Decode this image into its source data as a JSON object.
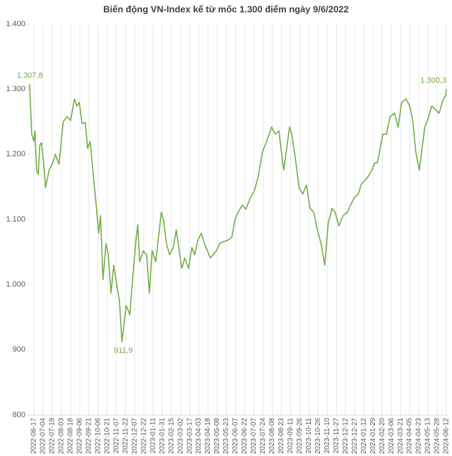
{
  "chart_data": {
    "type": "line",
    "title": "Biến động VN-Index kể từ mốc 1.300 điểm ngày 9/6/2022",
    "x": [
      "2022-06-09",
      "2022-06-13",
      "2022-06-17",
      "2022-06-19",
      "2022-06-22",
      "2022-06-25",
      "2022-06-28",
      "2022-07-01",
      "2022-07-06",
      "2022-07-08",
      "2022-07-14",
      "2022-07-20",
      "2022-07-24",
      "2022-07-30",
      "2022-08-06",
      "2022-08-12",
      "2022-08-18",
      "2022-08-26",
      "2022-08-31",
      "2022-09-05",
      "2022-09-10",
      "2022-09-15",
      "2022-09-19",
      "2022-09-23",
      "2022-09-28",
      "2022-10-03",
      "2022-10-07",
      "2022-10-10",
      "2022-10-14",
      "2022-10-19",
      "2022-10-23",
      "2022-10-28",
      "2022-11-02",
      "2022-11-08",
      "2022-11-12",
      "2022-11-16",
      "2022-11-23",
      "2022-11-29",
      "2022-12-04",
      "2022-12-09",
      "2022-12-12",
      "2022-12-15",
      "2022-12-21",
      "2022-12-28",
      "2023-01-03",
      "2023-01-09",
      "2023-01-17",
      "2023-01-24",
      "2023-01-29",
      "2023-02-02",
      "2023-02-07",
      "2023-02-12",
      "2023-02-18",
      "2023-02-23",
      "2023-02-28",
      "2023-03-04",
      "2023-03-09",
      "2023-03-15",
      "2023-03-21",
      "2023-03-26",
      "2023-04-01",
      "2023-04-07",
      "2023-04-12",
      "2023-04-17",
      "2023-04-23",
      "2023-04-29",
      "2023-05-06",
      "2023-05-12",
      "2023-05-18",
      "2023-05-25",
      "2023-06-01",
      "2023-06-06",
      "2023-06-11",
      "2023-06-18",
      "2023-06-24",
      "2023-07-01",
      "2023-07-08",
      "2023-07-15",
      "2023-07-23",
      "2023-07-30",
      "2023-08-07",
      "2023-08-13",
      "2023-08-19",
      "2023-08-23",
      "2023-08-28",
      "2023-09-03",
      "2023-09-09",
      "2023-09-13",
      "2023-09-19",
      "2023-09-25",
      "2023-10-01",
      "2023-10-07",
      "2023-10-13",
      "2023-10-19",
      "2023-10-25",
      "2023-10-31",
      "2023-11-06",
      "2023-11-12",
      "2023-11-19",
      "2023-11-25",
      "2023-12-01",
      "2023-12-08",
      "2023-12-15",
      "2023-12-20",
      "2023-12-26",
      "2024-01-02",
      "2024-01-08",
      "2024-01-14",
      "2024-01-20",
      "2024-01-27",
      "2024-02-02",
      "2024-02-08",
      "2024-02-14",
      "2024-02-21",
      "2024-02-27",
      "2024-03-04",
      "2024-03-11",
      "2024-03-17",
      "2024-03-23",
      "2024-03-30",
      "2024-04-05",
      "2024-04-11",
      "2024-04-17",
      "2024-04-24",
      "2024-04-30",
      "2024-05-06",
      "2024-05-12",
      "2024-05-19",
      "2024-05-25",
      "2024-05-31",
      "2024-06-07",
      "2024-06-11",
      "2024-06-12"
    ],
    "series": [
      {
        "name": "VN-Index",
        "color": "#70ad47",
        "values": [
          1307.8,
          1231,
          1220,
          1236,
          1176,
          1169,
          1214,
          1218,
          1176,
          1149,
          1176,
          1187,
          1200,
          1185,
          1250,
          1258,
          1252,
          1285,
          1274,
          1280,
          1247,
          1249,
          1209,
          1220,
          1171,
          1122,
          1079,
          1106,
          1008,
          1063,
          1046,
          987,
          1030,
          997,
          976,
          911.9,
          968,
          954,
          1014,
          1068,
          1092,
          1035,
          1052,
          1046,
          987,
          1052,
          1035,
          1079,
          1111,
          1100,
          1063,
          1046,
          1057,
          1084,
          1052,
          1025,
          1041,
          1025,
          1057,
          1046,
          1068,
          1079,
          1063,
          1052,
          1041,
          1046,
          1052,
          1063,
          1066,
          1068,
          1073,
          1100,
          1111,
          1122,
          1116,
          1133,
          1144,
          1166,
          1204,
          1220,
          1242,
          1231,
          1236,
          1204,
          1176,
          1209,
          1242,
          1231,
          1193,
          1149,
          1139,
          1153,
          1117,
          1111,
          1084,
          1063,
          1030,
          1095,
          1117,
          1111,
          1090,
          1106,
          1111,
          1122,
          1133,
          1139,
          1155,
          1160,
          1166,
          1176,
          1187,
          1187,
          1204,
          1231,
          1231,
          1258,
          1263,
          1242,
          1280,
          1285,
          1274,
          1252,
          1204,
          1176,
          1209,
          1242,
          1252,
          1274,
          1269,
          1263,
          1285,
          1290,
          1300.3
        ],
        "value_labels": [
          "1.307,8",
          null,
          null,
          null,
          null,
          null,
          null,
          null,
          null,
          null,
          null,
          null,
          null,
          null,
          null,
          null,
          null,
          null,
          null,
          null,
          null,
          null,
          null,
          null,
          null,
          null,
          null,
          null,
          null,
          null,
          null,
          null,
          null,
          null,
          null,
          "911,9",
          null,
          null,
          null,
          null,
          null,
          null,
          null,
          null,
          null,
          null,
          null,
          null,
          null,
          null,
          null,
          null,
          null,
          null,
          null,
          null,
          null,
          null,
          null,
          null,
          null,
          null,
          null,
          null,
          null,
          null,
          null,
          null,
          null,
          null,
          null,
          null,
          null,
          null,
          null,
          null,
          null,
          null,
          null,
          null,
          null,
          null,
          null,
          null,
          null,
          null,
          null,
          null,
          null,
          null,
          null,
          null,
          null,
          null,
          null,
          null,
          null,
          null,
          null,
          null,
          null,
          null,
          null,
          null,
          null,
          null,
          null,
          null,
          null,
          null,
          null,
          null,
          null,
          null,
          null,
          null,
          null,
          null,
          null,
          null,
          null,
          null,
          null,
          null,
          null,
          null,
          null,
          null,
          null,
          null,
          null,
          null,
          "1.300,3"
        ]
      }
    ],
    "ylim": [
      800,
      1400
    ],
    "yticks": [
      800,
      900,
      {
        "value": 1000,
        "label": "1.000"
      },
      {
        "value": 1100,
        "label": "1.100"
      },
      {
        "value": 1200,
        "label": "1.200"
      },
      {
        "value": 1300,
        "label": "1.300"
      },
      {
        "value": 1400,
        "label": "1.400"
      }
    ],
    "xticks": [
      "2022-06-17",
      "2022-07-04",
      "2022-07-19",
      "2022-08-03",
      "2022-08-18",
      "2022-09-06",
      "2022-09-21",
      "2022-10-06",
      "2022-10-21",
      "2022-11-07",
      "2022-11-22",
      "2022-12-07",
      "2022-12-22",
      "2023-01-11",
      "2023-01-31",
      "2023-02-15",
      "2023-03-02",
      "2023-03-17",
      "2023-04-03",
      "2023-04-18",
      "2023-05-08",
      "2023-05-23",
      "2023-06-07",
      "2023-06-22",
      "2023-07-07",
      "2023-07-24",
      "2023-08-08",
      "2023-08-23",
      "2023-09-11",
      "2023-09-26",
      "2023-10-11",
      "2023-10-26",
      "2023-11-10",
      "2023-11-27",
      "2023-12-12",
      "2023-12-27",
      "2024-01-12",
      "2024-01-29",
      "2024-02-20",
      "2024-03-06",
      "2024-03-21",
      "2024-04-05",
      "2024-04-23",
      "2024-05-13",
      "2024-05-28",
      "2024-06-12"
    ],
    "grid": "x"
  }
}
